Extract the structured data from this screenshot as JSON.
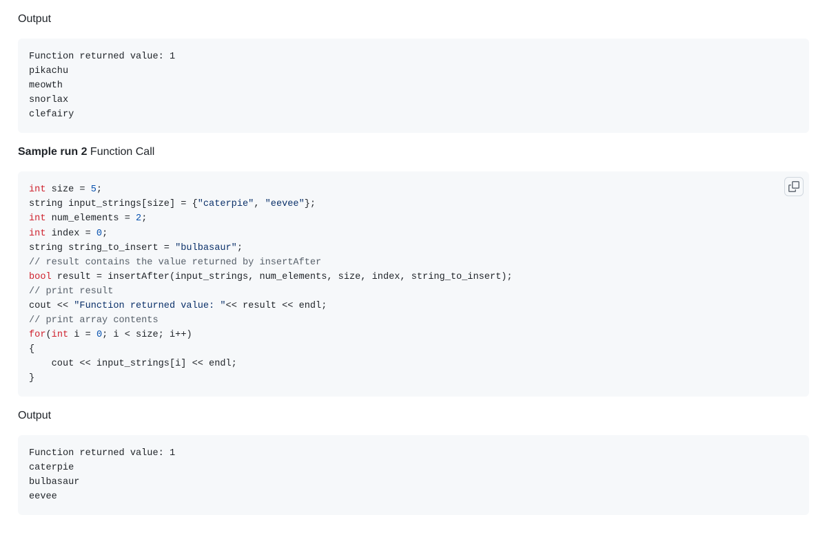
{
  "colors": {
    "page_bg": "#ffffff",
    "code_bg": "#f6f8fa",
    "text": "#1f2328",
    "keyword": "#cf222e",
    "number": "#0550ae",
    "string": "#0a3069",
    "comment": "#57606a",
    "copy_border": "#d0d7de",
    "copy_icon": "#656d76"
  },
  "typography": {
    "body_font": "-apple-system, Segoe UI, Helvetica, Arial, sans-serif",
    "mono_font": "ui-monospace, SFMono-Regular, Menlo, Consolas, monospace",
    "body_size_pt": 12,
    "code_size_pt": 10.2
  },
  "sections": [
    {
      "heading_bold": "",
      "heading_rest": "Output",
      "block_type": "plain",
      "has_copy": false,
      "content_plain": "Function returned value: 1\npikachu\nmeowth\nsnorlax\nclefairy"
    },
    {
      "heading_bold": "Sample run 2",
      "heading_rest": " Function Call",
      "block_type": "code",
      "has_copy": true,
      "content_tokens": [
        [
          [
            "k",
            "int"
          ],
          [
            "t",
            " size = "
          ],
          [
            "n",
            "5"
          ],
          [
            "t",
            ";"
          ]
        ],
        [
          [
            "t",
            "string input_strings[size] = {"
          ],
          [
            "s",
            "\"caterpie\""
          ],
          [
            "t",
            ", "
          ],
          [
            "s",
            "\"eevee\""
          ],
          [
            "t",
            "};"
          ]
        ],
        [
          [
            "k",
            "int"
          ],
          [
            "t",
            " num_elements = "
          ],
          [
            "n",
            "2"
          ],
          [
            "t",
            ";"
          ]
        ],
        [
          [
            "k",
            "int"
          ],
          [
            "t",
            " index = "
          ],
          [
            "n",
            "0"
          ],
          [
            "t",
            ";"
          ]
        ],
        [
          [
            "t",
            "string string_to_insert = "
          ],
          [
            "s",
            "\"bulbasaur\""
          ],
          [
            "t",
            ";"
          ]
        ],
        [
          [
            "c",
            "// result contains the value returned by insertAfter"
          ]
        ],
        [
          [
            "k",
            "bool"
          ],
          [
            "t",
            " result = insertAfter(input_strings, num_elements, size, index, string_to_insert);"
          ]
        ],
        [
          [
            "c",
            "// print result"
          ]
        ],
        [
          [
            "t",
            "cout << "
          ],
          [
            "s",
            "\"Function returned value: \""
          ],
          [
            "t",
            "<< result << endl;"
          ]
        ],
        [
          [
            "c",
            "// print array contents"
          ]
        ],
        [
          [
            "k",
            "for"
          ],
          [
            "t",
            "("
          ],
          [
            "k",
            "int"
          ],
          [
            "t",
            " i = "
          ],
          [
            "n",
            "0"
          ],
          [
            "t",
            "; i < size; i++)"
          ]
        ],
        [
          [
            "t",
            "{"
          ]
        ],
        [
          [
            "t",
            "    cout << input_strings[i] << endl;"
          ]
        ],
        [
          [
            "t",
            "}"
          ]
        ]
      ]
    },
    {
      "heading_bold": "",
      "heading_rest": "Output",
      "block_type": "plain",
      "has_copy": false,
      "content_plain": "Function returned value: 1\ncaterpie\nbulbasaur\neevee"
    }
  ]
}
